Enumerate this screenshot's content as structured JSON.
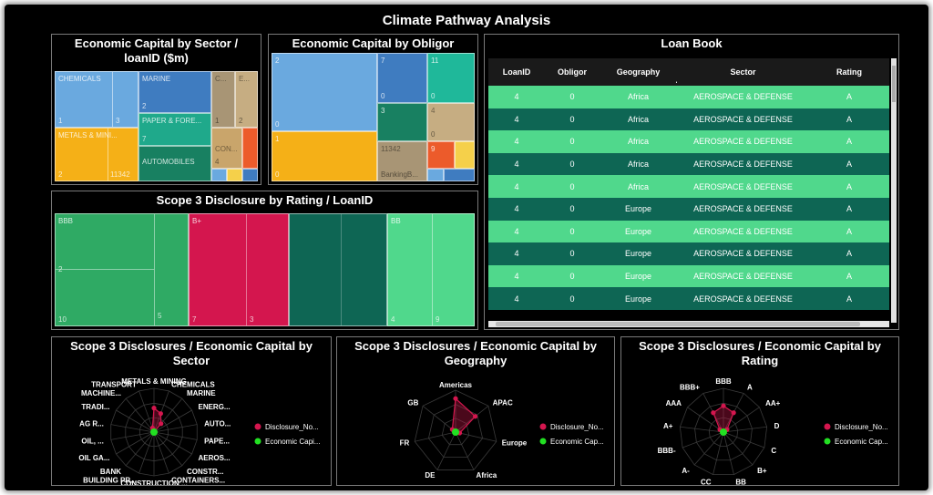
{
  "title": "Climate Pathway Analysis",
  "colors": {
    "background": "#000000",
    "light_green": "#50d88c",
    "dark_green": "#0e6654",
    "disclosure": "#d4164e",
    "capital": "#22e022"
  },
  "sector_treemap": {
    "title": "Economic Capital by Sector / loanID ($m)",
    "cells": [
      {
        "label": "CHEMICALS",
        "n1": "1",
        "n2": "3"
      },
      {
        "label": "MARINE",
        "n1": "2"
      },
      {
        "label": "C...",
        "n1": "1"
      },
      {
        "label": "E...",
        "n1": "2"
      },
      {
        "label": "METALS & MINI...",
        "n1": "2",
        "n2": "11342"
      },
      {
        "label": "PAPER & FORE...",
        "n1": "7"
      },
      {
        "label": "AUTOMOBILES"
      },
      {
        "label": "CON...",
        "n1": "4"
      }
    ]
  },
  "obligor_treemap": {
    "title": "Economic Capital by Obligor",
    "cells": [
      {
        "label": "2",
        "n1": "0"
      },
      {
        "label": "7",
        "n1": "0"
      },
      {
        "label": "11",
        "n1": "0"
      },
      {
        "label": "3"
      },
      {
        "label": "4",
        "n1": "0"
      },
      {
        "label": "1",
        "n1": "0"
      },
      {
        "label": "11342",
        "sub": "BankingB..."
      },
      {
        "label": "9"
      }
    ]
  },
  "rating_treemap": {
    "title": "Scope 3 Disclosure by Rating / LoanID",
    "cells": [
      {
        "label": "BBB",
        "n1": "2",
        "n2": "10",
        "n3": "5"
      },
      {
        "label": "B+",
        "n1": "7",
        "n2": "3"
      },
      {
        "label": "",
        "n1": "",
        "n2": ""
      },
      {
        "label": "BB",
        "n1": "4",
        "n2": "9"
      }
    ]
  },
  "loan_book": {
    "title": "Loan Book",
    "columns": [
      "LoanID",
      "Obligor",
      "Geography",
      "Sector",
      "Rating"
    ],
    "rows": [
      [
        "4",
        "0",
        "Africa",
        "AEROSPACE & DEFENSE",
        "A"
      ],
      [
        "4",
        "0",
        "Africa",
        "AEROSPACE & DEFENSE",
        "A"
      ],
      [
        "4",
        "0",
        "Africa",
        "AEROSPACE & DEFENSE",
        "A"
      ],
      [
        "4",
        "0",
        "Africa",
        "AEROSPACE & DEFENSE",
        "A"
      ],
      [
        "4",
        "0",
        "Africa",
        "AEROSPACE & DEFENSE",
        "A"
      ],
      [
        "4",
        "0",
        "Europe",
        "AEROSPACE & DEFENSE",
        "A"
      ],
      [
        "4",
        "0",
        "Europe",
        "AEROSPACE & DEFENSE",
        "A"
      ],
      [
        "4",
        "0",
        "Europe",
        "AEROSPACE & DEFENSE",
        "A"
      ],
      [
        "4",
        "0",
        "Europe",
        "AEROSPACE & DEFENSE",
        "A"
      ],
      [
        "4",
        "0",
        "Europe",
        "AEROSPACE & DEFENSE",
        "A"
      ]
    ]
  },
  "radar_sector": {
    "title": "Scope 3 Disclosures / Economic Capital by Sector",
    "labels": [
      "METALS & MINING",
      "CHEMICALS",
      "MARINE",
      "ENERG...",
      "AUTO...",
      "PAPE...",
      "AEROS...",
      "CONSTR...",
      "CONTAINERS...",
      "CONSTRUCTION ...",
      "BUILDING PR...",
      "BANK",
      "OIL GA...",
      "OIL, ...",
      "AG R...",
      "TRADI...",
      "MACHINE...",
      "TRANSPORT"
    ],
    "legend": [
      "Disclosure_No...",
      "Economic Capi..."
    ]
  },
  "radar_geo": {
    "title": "Scope 3 Disclosures / Economic Capital by Geography",
    "labels": [
      "Americas",
      "APAC",
      "Europe",
      "Africa",
      "DE",
      "FR",
      "GB"
    ],
    "legend": [
      "Disclosure_No...",
      "Economic Cap..."
    ]
  },
  "radar_rating": {
    "title": "Scope 3 Disclosures / Economic Capital by Rating",
    "labels": [
      "BBB",
      "A",
      "AA+",
      "D",
      "C",
      "B+",
      "BB",
      "CC",
      "A-",
      "BBB-",
      "A+",
      "AAA",
      "BBB+"
    ],
    "legend": [
      "Disclosure_No...",
      "Economic Cap..."
    ]
  }
}
